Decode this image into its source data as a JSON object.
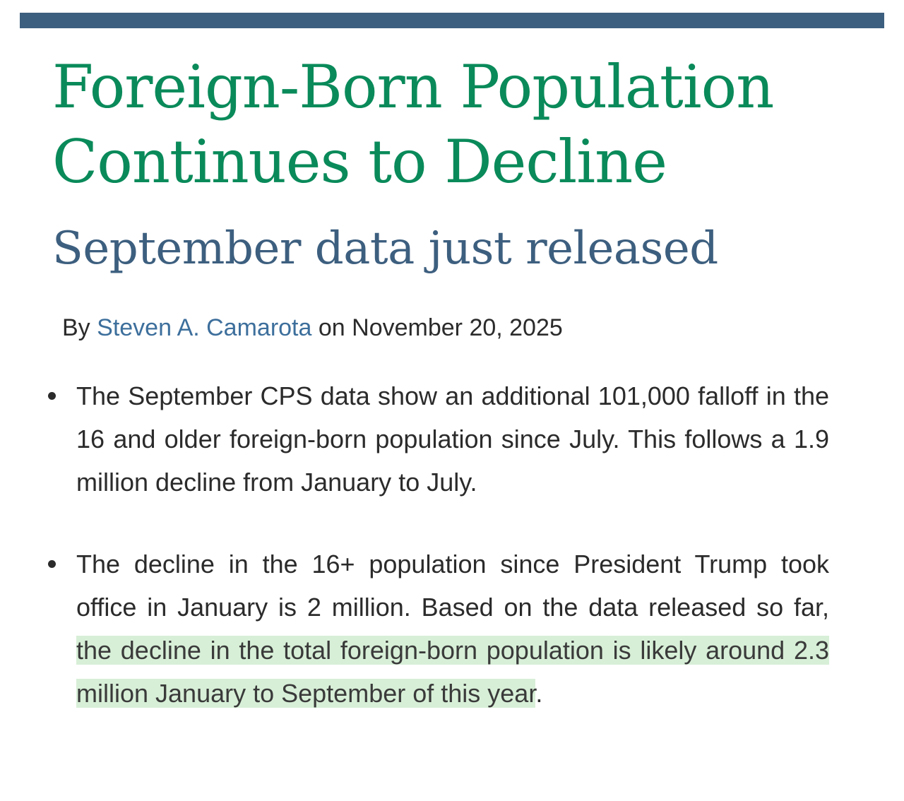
{
  "article": {
    "title": "Foreign-Born Population Continues to Decline",
    "subtitle": "September data just released",
    "byline": {
      "prefix": "By",
      "author": "Steven A. Camarota",
      "date_prefix": "on",
      "date": "November 20, 2025"
    },
    "bullets": [
      {
        "text": "The September CPS data show an additional 101,000 falloff in the 16 and older foreign-born population since July. This follows a 1.9 million decline from January to July."
      },
      {
        "text_before": "The decline in the 16+ population since President Trump took office in January is 2 million. Based on the data released so far, ",
        "highlighted": "the decline in the total foreign-born population is likely around 2.3 million January to September of this year",
        "text_after": "."
      }
    ]
  },
  "colors": {
    "title": "#0a8a5a",
    "subtitle": "#3d5f7f",
    "top_rule": "#3d5f7f",
    "author_link": "#3d6f9c",
    "highlight": "#d7efd7"
  }
}
